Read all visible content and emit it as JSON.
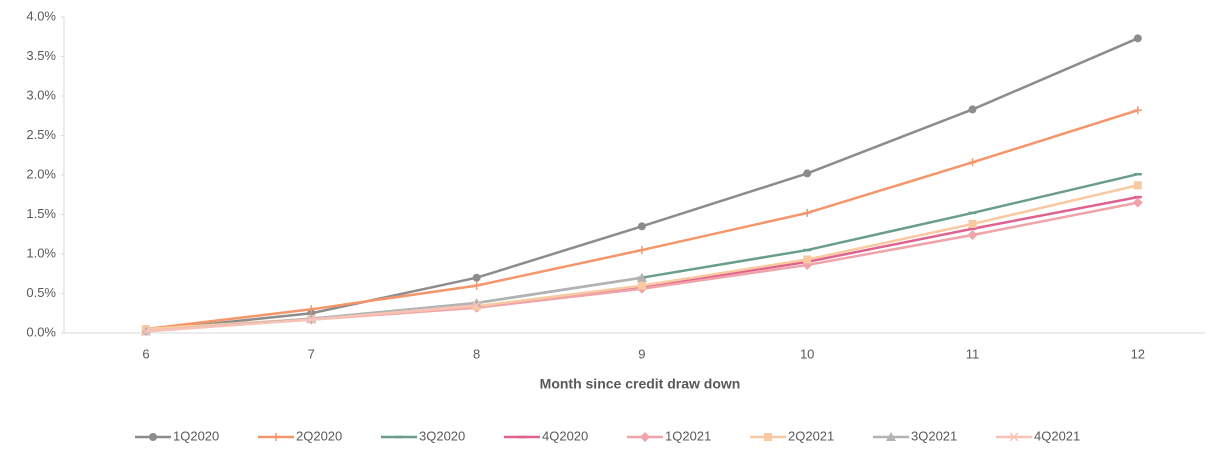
{
  "chart_data": {
    "type": "line",
    "x_label": "Month since credit draw down",
    "categories": [
      "6",
      "7",
      "8",
      "9",
      "10",
      "11",
      "12"
    ],
    "ylim": [
      0,
      4
    ],
    "yticks": [
      {
        "value": 0,
        "label": "0.0%"
      },
      {
        "value": 0.5,
        "label": "0.5%"
      },
      {
        "value": 1,
        "label": "1.0%"
      },
      {
        "value": 1.5,
        "label": "1.5%"
      },
      {
        "value": 2,
        "label": "2.0%"
      },
      {
        "value": 2.5,
        "label": "2.5%"
      },
      {
        "value": 3,
        "label": "3.0%"
      },
      {
        "value": 3.5,
        "label": "3.5%"
      },
      {
        "value": 4,
        "label": "4.0%"
      }
    ],
    "legend": "bottom",
    "series": [
      {
        "name": "1Q2020",
        "color": "#8c8c8c",
        "marker": "circle",
        "values": [
          0.03,
          0.25,
          0.7,
          1.35,
          2.02,
          2.83,
          3.73
        ]
      },
      {
        "name": "2Q2020",
        "color": "#f4956a",
        "marker": "plus",
        "values": [
          0.05,
          0.3,
          0.6,
          1.05,
          1.52,
          2.16,
          2.82
        ]
      },
      {
        "name": "3Q2020",
        "color": "#6a9e8a",
        "marker": "dash",
        "values": [
          0.03,
          0.18,
          0.38,
          0.7,
          1.05,
          1.52,
          2.01
        ]
      },
      {
        "name": "4Q2020",
        "color": "#e0628f",
        "marker": "dash",
        "values": [
          0.03,
          0.18,
          0.33,
          0.58,
          0.9,
          1.32,
          1.72
        ]
      },
      {
        "name": "1Q2021",
        "color": "#f0a3a8",
        "marker": "diamond",
        "values": [
          0.03,
          0.17,
          0.32,
          0.56,
          0.86,
          1.24,
          1.65
        ]
      },
      {
        "name": "2Q2021",
        "color": "#f9c9a2",
        "marker": "square",
        "values": [
          0.05,
          0.18,
          0.34,
          0.6,
          0.93,
          1.38,
          1.87
        ]
      },
      {
        "name": "3Q2021",
        "color": "#b3b3b3",
        "marker": "triangle",
        "values": [
          0.02,
          0.18,
          0.38,
          0.7,
          null,
          null,
          null
        ]
      },
      {
        "name": "4Q2021",
        "color": "#f8c3b6",
        "marker": "x",
        "values": [
          0.02,
          0.17,
          0.35,
          null,
          null,
          null,
          null
        ]
      }
    ]
  }
}
